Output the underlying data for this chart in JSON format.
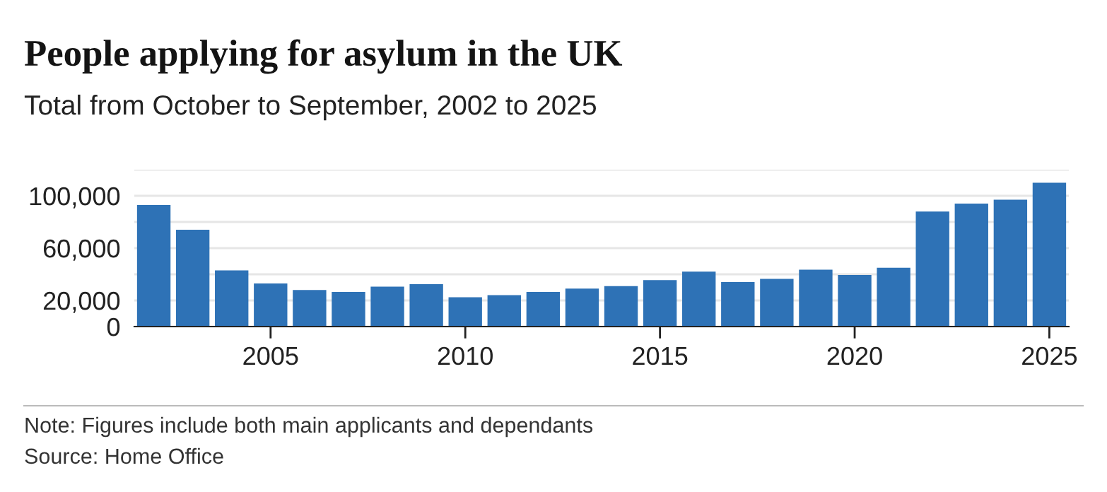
{
  "chart_data": {
    "type": "bar",
    "title": "People applying for asylum in the UK",
    "subtitle": "Total from October to September, 2002 to 2025",
    "x": [
      2002,
      2003,
      2004,
      2005,
      2006,
      2007,
      2008,
      2009,
      2010,
      2011,
      2012,
      2013,
      2014,
      2015,
      2016,
      2017,
      2018,
      2019,
      2020,
      2021,
      2022,
      2023,
      2024,
      2025
    ],
    "values": [
      93000,
      74000,
      43000,
      33000,
      28000,
      26500,
      30500,
      32500,
      22500,
      24000,
      26500,
      29000,
      31000,
      35500,
      42000,
      34000,
      36500,
      43500,
      39500,
      45000,
      88000,
      94000,
      97000,
      110000
    ],
    "color": "#2e72b6",
    "xlim": [
      2001.5,
      2025.5
    ],
    "xticks": [
      2005,
      2010,
      2015,
      2020,
      2025
    ],
    "ylim": [
      0,
      120000
    ],
    "yticks": [
      0,
      {
        "value": 20000,
        "label": "20,000"
      },
      {
        "value": 40000,
        "label": null
      },
      {
        "value": 60000,
        "label": "60,000"
      },
      {
        "value": 80000,
        "label": null
      },
      {
        "value": 100000,
        "label": "100,000"
      },
      {
        "value": 120000,
        "label": null
      }
    ],
    "grid": "y",
    "annotations": [
      "Note: Figures include both main applicants and dependants",
      "Source: Home Office"
    ]
  }
}
